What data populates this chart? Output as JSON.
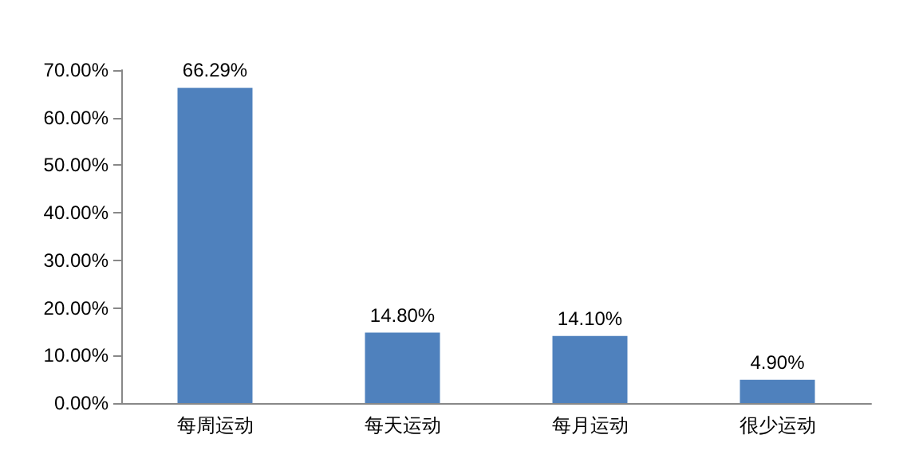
{
  "chart_data": {
    "type": "bar",
    "categories": [
      "每周运动",
      "每天运动",
      "每月运动",
      "很少运动"
    ],
    "values": [
      66.29,
      14.8,
      14.1,
      4.9
    ],
    "color": "#4f81bd",
    "value_labels": [
      "66.29%",
      "14.80%",
      "14.10%",
      "4.90%"
    ],
    "ylim": [
      0,
      70
    ],
    "yticks": [
      {
        "value": 0,
        "label": "0.00%"
      },
      {
        "value": 10,
        "label": "10.00%"
      },
      {
        "value": 20,
        "label": "20.00%"
      },
      {
        "value": 30,
        "label": "30.00%"
      },
      {
        "value": 40,
        "label": "40.00%"
      },
      {
        "value": 50,
        "label": "50.00%"
      },
      {
        "value": 60,
        "label": "60.00%"
      },
      {
        "value": 70,
        "label": "70.00%"
      }
    ],
    "grid": false
  }
}
